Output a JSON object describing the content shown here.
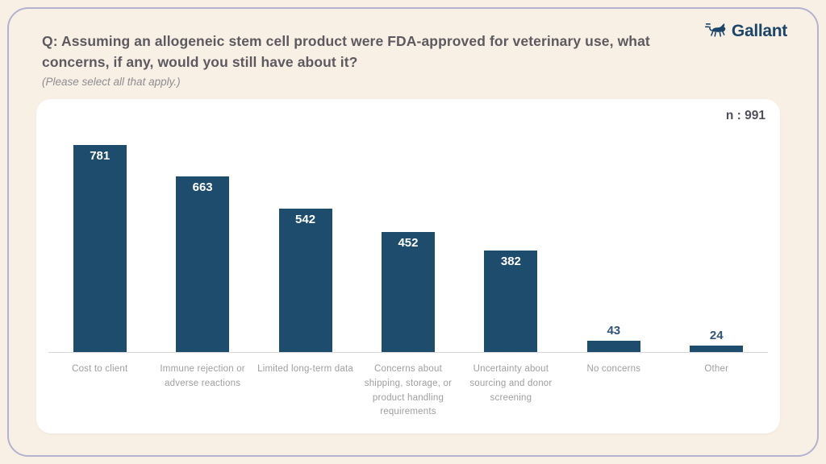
{
  "page": {
    "background_color": "#f8f0e4",
    "frame_border_color": "#b3b2d0"
  },
  "header": {
    "question_line1": "Q: Assuming an allogeneic stem cell product were FDA-approved for veterinary use, what",
    "question_line2": "concerns, if any, would you still have about it?",
    "note": "(Please select all that apply.)"
  },
  "brand": {
    "name": "Gallant",
    "icon": "running-dog-icon",
    "color": "#1c4569"
  },
  "card": {
    "sample_label": "n : 991"
  },
  "chart_data": {
    "type": "bar",
    "title": "Q: Assuming an allogeneic stem cell product were FDA-approved for veterinary use, what concerns, if any, would you still have about it?",
    "subtitle": "(Please select all that apply.)",
    "sample_size": 991,
    "categories": [
      "Cost to client",
      "Immune rejection or adverse reactions",
      "Limited long-term data",
      "Concerns about shipping, storage, or product handling requirements",
      "Uncertainty about sourcing and donor screening",
      "No concerns",
      "Other"
    ],
    "values": [
      781,
      663,
      542,
      452,
      382,
      43,
      24
    ],
    "xlabel": "",
    "ylabel": "",
    "ylim": [
      0,
      830
    ],
    "grid": false,
    "legend": false,
    "bar_color": "#1d4c6c",
    "value_label_inside_color": "#ffffff",
    "value_label_outside_color": "#2d5577",
    "axis_line_color": "#d8d8d8"
  }
}
